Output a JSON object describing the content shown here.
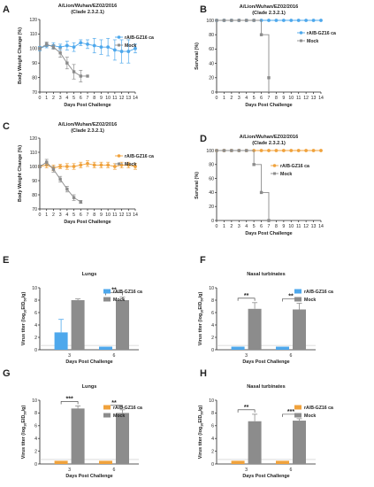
{
  "colors": {
    "blue": "#4ea8ec",
    "grey": "#8c8c8c",
    "orange": "#f0a23c",
    "axis": "#222222"
  },
  "legend_text": {
    "vaccine": "rA/B-GZ16 ca",
    "mock": "Mock"
  },
  "chart_data": [
    {
      "panel": "A",
      "type": "line",
      "title": "A/Lion/Wuhan/EZ02/2016",
      "subtitle": "(Clade 2.3.2.1)",
      "xlabel": "Days Post Challenge",
      "ylabel": "Body Weight Change (%)",
      "xlim": [
        0,
        14
      ],
      "ylim": [
        70,
        120
      ],
      "x_ticks": [
        "0",
        "1",
        "2",
        "3",
        "4",
        "5",
        "6",
        "7",
        "8",
        "9",
        "10",
        "11",
        "12",
        "13",
        "14"
      ],
      "y_ticks": [
        "70",
        "80",
        "90",
        "100",
        "110",
        "120"
      ],
      "legend": "top-right",
      "series": [
        {
          "name": "rA/B-GZ16 ca",
          "color": "blue",
          "x": [
            0,
            1,
            2,
            3,
            4,
            5,
            6,
            7,
            8,
            9,
            10,
            11,
            12,
            13,
            14
          ],
          "y": [
            100,
            102,
            102,
            101,
            102,
            101,
            104,
            103,
            102,
            101,
            101,
            99,
            98,
            98,
            100
          ],
          "err": [
            1.5,
            1.5,
            2,
            2,
            3,
            3,
            2,
            3,
            5,
            5,
            6,
            7,
            8,
            8,
            3
          ]
        },
        {
          "name": "Mock",
          "color": "grey",
          "x": [
            0,
            1,
            2,
            3,
            4,
            5,
            6,
            7
          ],
          "y": [
            100,
            103,
            101,
            97,
            90,
            84,
            81,
            81
          ],
          "err": [
            1,
            1.5,
            1.5,
            3,
            4,
            5,
            4,
            0
          ]
        }
      ]
    },
    {
      "panel": "B",
      "type": "line",
      "title": "A/Lion/Wuhan/EZ02/2016",
      "subtitle": "(Clade 2.3.2.1)",
      "xlabel": "Days Post Challenge",
      "ylabel": "Survival (%)",
      "xlim": [
        0,
        14
      ],
      "ylim": [
        0,
        100
      ],
      "x_ticks": [
        "0",
        "1",
        "2",
        "3",
        "4",
        "5",
        "6",
        "7",
        "8",
        "9",
        "10",
        "11",
        "12",
        "13",
        "14"
      ],
      "y_ticks": [
        "0",
        "20",
        "40",
        "60",
        "80",
        "100"
      ],
      "legend": "right",
      "series": [
        {
          "name": "rA/B-GZ16 ca",
          "color": "blue",
          "x": [
            0,
            1,
            2,
            3,
            4,
            5,
            6,
            7,
            8,
            9,
            10,
            11,
            12,
            13,
            14
          ],
          "y": [
            100,
            100,
            100,
            100,
            100,
            100,
            100,
            100,
            100,
            100,
            100,
            100,
            100,
            100,
            100
          ]
        },
        {
          "name": "Mock",
          "color": "grey",
          "x": [
            0,
            1,
            2,
            3,
            4,
            5,
            6,
            7
          ],
          "y": [
            100,
            100,
            100,
            100,
            100,
            100,
            80,
            20
          ],
          "drop_to": 0
        }
      ]
    },
    {
      "panel": "C",
      "type": "line",
      "title": "A/Lion/Wuhan/EZ02/2016",
      "subtitle": "(Clade 2.3.2.1)",
      "xlabel": "Days Post Challenge",
      "ylabel": "Body Weight Change (%)",
      "xlim": [
        0,
        14
      ],
      "ylim": [
        70,
        120
      ],
      "x_ticks": [
        "0",
        "1",
        "2",
        "3",
        "4",
        "5",
        "6",
        "7",
        "8",
        "9",
        "10",
        "11",
        "12",
        "13",
        "14"
      ],
      "y_ticks": [
        "70",
        "80",
        "90",
        "100",
        "110",
        "120"
      ],
      "legend": "top-right",
      "series": [
        {
          "name": "rA/B-GZ16 ca",
          "color": "orange",
          "x": [
            0,
            1,
            2,
            3,
            4,
            5,
            6,
            7,
            8,
            9,
            10,
            11,
            12,
            13,
            14
          ],
          "y": [
            100,
            101,
            99,
            100,
            100,
            100,
            101,
            102,
            101,
            101,
            101,
            100,
            101,
            101,
            100
          ],
          "err": [
            1,
            2,
            2,
            1.5,
            2,
            2,
            2,
            2,
            2,
            2,
            2,
            2,
            2,
            2,
            2
          ]
        },
        {
          "name": "Mock",
          "color": "grey",
          "x": [
            0,
            1,
            2,
            3,
            4,
            5,
            6
          ],
          "y": [
            100,
            103,
            98,
            91,
            84,
            78,
            75
          ],
          "err": [
            1,
            2,
            2,
            2,
            2,
            2,
            1
          ]
        }
      ]
    },
    {
      "panel": "D",
      "type": "line",
      "title": "A/Lion/Wuhan/EZ02/2016",
      "subtitle": "(Clade 2.3.2.1)",
      "xlabel": "Days Post Challenge",
      "ylabel": "Survival (%)",
      "xlim": [
        0,
        14
      ],
      "ylim": [
        0,
        100
      ],
      "x_ticks": [
        "0",
        "1",
        "2",
        "3",
        "4",
        "5",
        "6",
        "7",
        "8",
        "9",
        "10",
        "11",
        "12",
        "13",
        "14"
      ],
      "y_ticks": [
        "0",
        "20",
        "40",
        "60",
        "80",
        "100"
      ],
      "legend": "right",
      "series": [
        {
          "name": "rA/B-GZ16 ca",
          "color": "orange",
          "x": [
            0,
            1,
            2,
            3,
            4,
            5,
            6,
            7,
            8,
            9,
            10,
            11,
            12,
            13,
            14
          ],
          "y": [
            100,
            100,
            100,
            100,
            100,
            100,
            100,
            100,
            100,
            100,
            100,
            100,
            100,
            100,
            100
          ]
        },
        {
          "name": "Mock",
          "color": "grey",
          "x": [
            0,
            1,
            2,
            3,
            4,
            5,
            6,
            7
          ],
          "y": [
            100,
            100,
            100,
            100,
            100,
            80,
            40,
            0
          ]
        }
      ]
    },
    {
      "panel": "E",
      "type": "bar",
      "title": "Lungs",
      "xlabel": "Days Post Challenge",
      "ylabel_main": "Virus titer (log",
      "ylabel_sub": "10",
      "ylabel_end": "EID",
      "ylabel_sub2": "50",
      "ylabel_tail": "/g)",
      "ylim": [
        0,
        10
      ],
      "y_ticks": [
        "0",
        "2",
        "4",
        "6",
        "8",
        "10"
      ],
      "categories": [
        "3",
        "6"
      ],
      "detection_limit": 0.7,
      "legend": "top-right",
      "series": [
        {
          "name": "rA/B-GZ16 ca",
          "color": "blue",
          "values": [
            2.8,
            0.5
          ],
          "err": [
            2.1,
            0
          ]
        },
        {
          "name": "Mock",
          "color": "grey",
          "values": [
            8.0,
            8.0
          ],
          "err": [
            0.2,
            0.5
          ]
        }
      ],
      "significance": [
        {
          "category": "6",
          "label": "**"
        }
      ]
    },
    {
      "panel": "F",
      "type": "bar",
      "title": "Nasal turbinates",
      "xlabel": "Days Post Challenge",
      "ylabel_main": "Virus titer (log",
      "ylabel_sub": "10",
      "ylabel_end": "EID",
      "ylabel_sub2": "50",
      "ylabel_tail": "/g)",
      "ylim": [
        0,
        10
      ],
      "y_ticks": [
        "0",
        "2",
        "4",
        "6",
        "8",
        "10"
      ],
      "categories": [
        "3",
        "6"
      ],
      "detection_limit": 0.7,
      "legend": "top-right",
      "series": [
        {
          "name": "rA/B-GZ16 ca",
          "color": "blue",
          "values": [
            0.5,
            0.5
          ],
          "err": [
            0,
            0
          ]
        },
        {
          "name": "Mock",
          "color": "grey",
          "values": [
            6.6,
            6.5
          ],
          "err": [
            1.0,
            1.0
          ]
        }
      ],
      "significance": [
        {
          "category": "3",
          "label": "**"
        },
        {
          "category": "6",
          "label": "**"
        }
      ]
    },
    {
      "panel": "G",
      "type": "bar",
      "title": "Lungs",
      "xlabel": "Days Post Challenge",
      "ylabel_main": "Virus titer (log",
      "ylabel_sub": "10",
      "ylabel_end": "EID",
      "ylabel_sub2": "50",
      "ylabel_tail": "/g)",
      "ylim": [
        0,
        10
      ],
      "y_ticks": [
        "0",
        "2",
        "4",
        "6",
        "8",
        "10"
      ],
      "categories": [
        "3",
        "6"
      ],
      "detection_limit": 0.7,
      "legend": "top-right",
      "series": [
        {
          "name": "rA/B-GZ16 ca",
          "color": "orange",
          "values": [
            0.5,
            0.5
          ],
          "err": [
            0,
            0
          ]
        },
        {
          "name": "Mock",
          "color": "grey",
          "values": [
            8.7,
            8.0
          ],
          "err": [
            0.4,
            0.5
          ]
        }
      ],
      "significance": [
        {
          "category": "3",
          "label": "***"
        },
        {
          "category": "6",
          "label": "**"
        }
      ]
    },
    {
      "panel": "H",
      "type": "bar",
      "title": "Nasal turbinates",
      "xlabel": "Days Post Challenge",
      "ylabel_main": "Virus titer (log",
      "ylabel_sub": "10",
      "ylabel_end": "EID",
      "ylabel_sub2": "50",
      "ylabel_tail": "/g)",
      "ylim": [
        0,
        10
      ],
      "y_ticks": [
        "0",
        "2",
        "4",
        "6",
        "8",
        "10"
      ],
      "categories": [
        "3",
        "6"
      ],
      "detection_limit": 0.7,
      "legend": "top-right",
      "series": [
        {
          "name": "rA/B-GZ16 ca",
          "color": "orange",
          "values": [
            0.5,
            0.5
          ],
          "err": [
            0,
            0
          ]
        },
        {
          "name": "Mock",
          "color": "grey",
          "values": [
            6.7,
            6.8
          ],
          "err": [
            1.1,
            0.3
          ]
        }
      ],
      "significance": [
        {
          "category": "3",
          "label": "**"
        },
        {
          "category": "6",
          "label": "***"
        }
      ]
    }
  ]
}
